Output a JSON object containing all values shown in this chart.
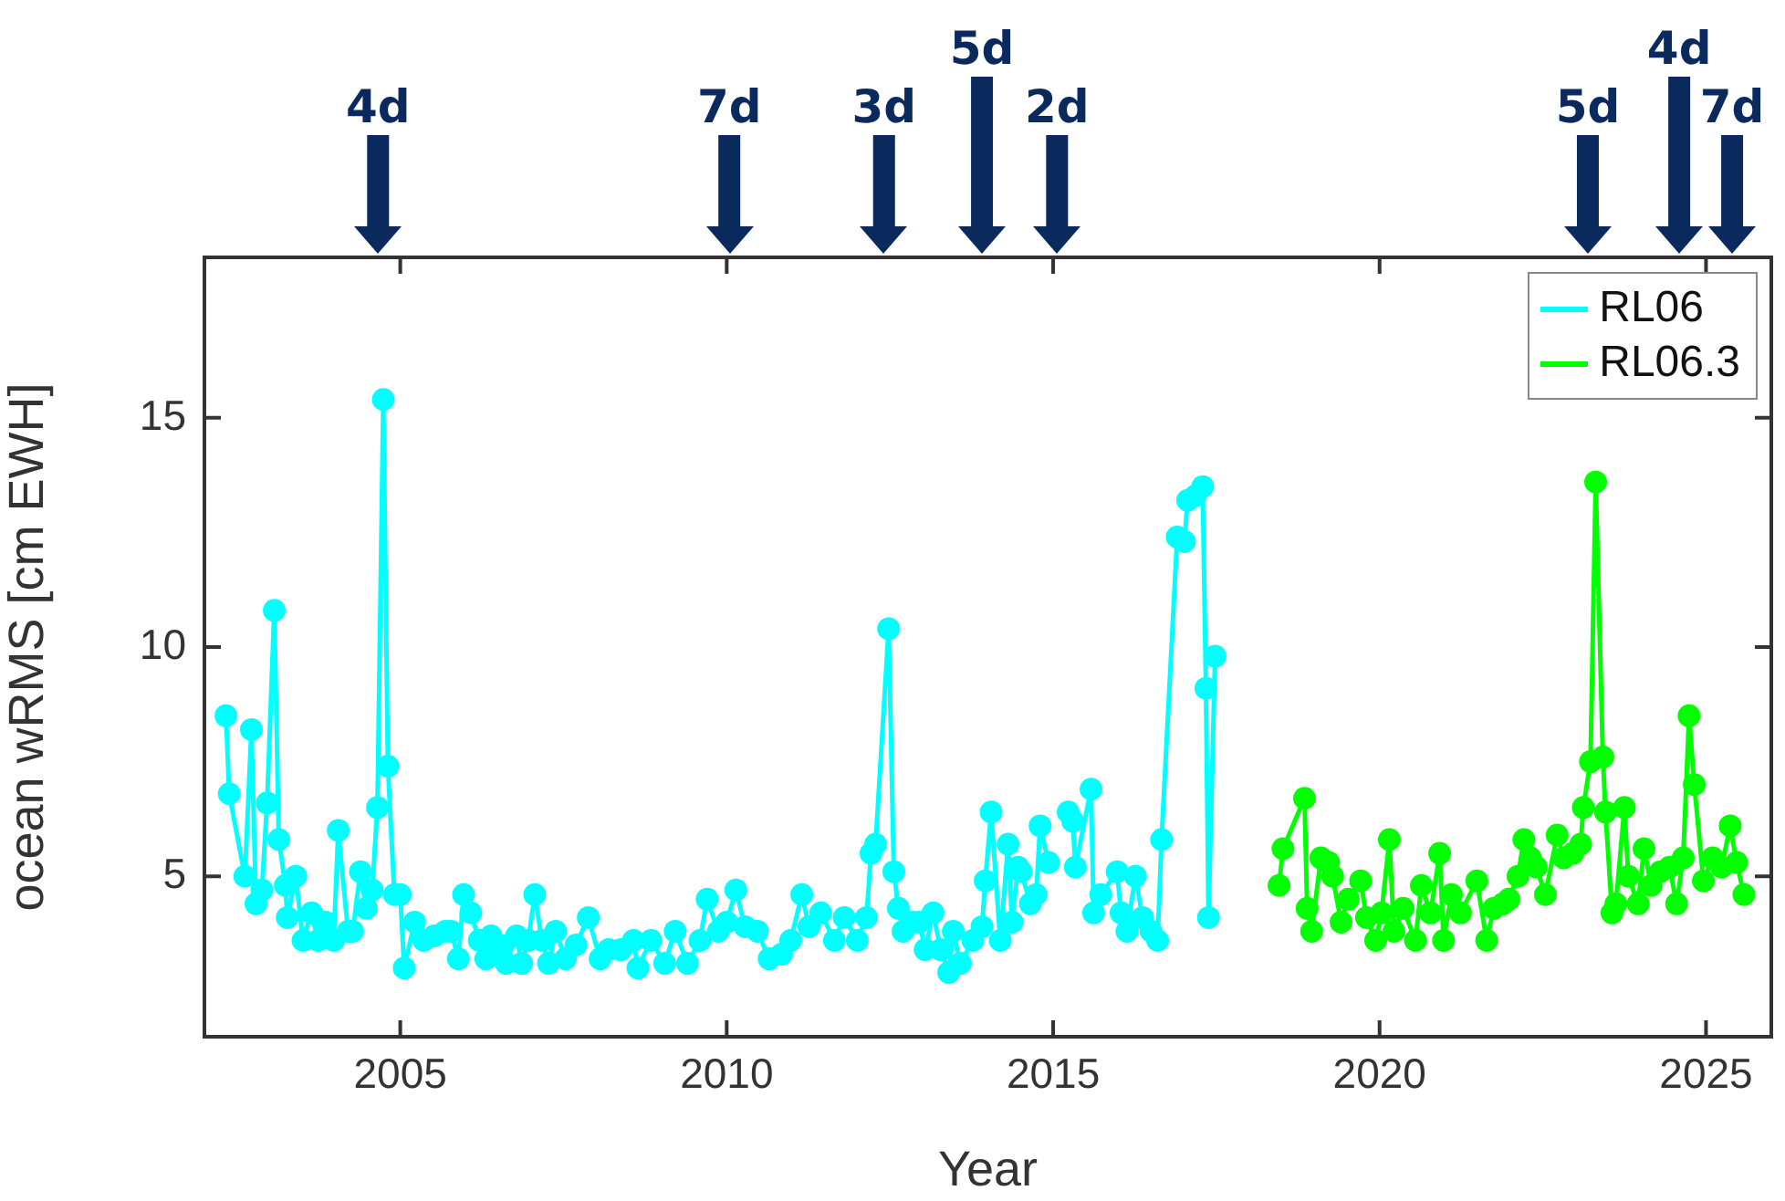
{
  "chart_data": {
    "type": "line",
    "xlabel": "Year",
    "ylabel": "ocean wRMS [cm EWH]",
    "xlim": [
      2002,
      2026
    ],
    "xticks": [
      2005,
      2010,
      2015,
      2020,
      2025
    ],
    "ylim": [
      1.5,
      18.5
    ],
    "yticks": [
      5,
      10,
      15
    ],
    "grid": false,
    "legend": "top right",
    "marker": "circle",
    "line_style": "solid",
    "ref_lines": [
      {
        "axis": "x",
        "value": 2004.66,
        "label": "4d"
      },
      {
        "axis": "x",
        "value": 2010.04,
        "label": "7d"
      },
      {
        "axis": "x",
        "value": 2012.41,
        "label": "3d"
      },
      {
        "axis": "x",
        "value": 2013.91,
        "label": "5d"
      },
      {
        "axis": "x",
        "value": 2015.06,
        "label": "2d"
      },
      {
        "axis": "x",
        "value": 2023.19,
        "label": "5d"
      },
      {
        "axis": "x",
        "value": 2024.59,
        "label": "4d"
      },
      {
        "axis": "x",
        "value": 2025.4,
        "label": "7d"
      }
    ],
    "series": [
      {
        "name": "RL06",
        "color": "#00ffff",
        "x": [
          2002.33,
          2002.38,
          2002.62,
          2002.72,
          2002.79,
          2002.88,
          2002.96,
          2003.07,
          2003.14,
          2003.24,
          2003.27,
          2003.4,
          2003.51,
          2003.64,
          2003.74,
          2003.85,
          2003.98,
          2004.05,
          2004.2,
          2004.27,
          2004.39,
          2004.48,
          2004.57,
          2004.65,
          2004.74,
          2004.81,
          2004.91,
          2005.0,
          2005.06,
          2005.22,
          2005.36,
          2005.52,
          2005.69,
          2005.78,
          2005.89,
          2005.97,
          2006.08,
          2006.21,
          2006.31,
          2006.39,
          2006.52,
          2006.62,
          2006.78,
          2006.86,
          2006.96,
          2007.06,
          2007.17,
          2007.27,
          2007.38,
          2007.53,
          2007.69,
          2007.88,
          2008.06,
          2008.19,
          2008.38,
          2008.57,
          2008.64,
          2008.84,
          2009.05,
          2009.21,
          2009.4,
          2009.59,
          2009.7,
          2009.87,
          2010.0,
          2010.14,
          2010.28,
          2010.47,
          2010.65,
          2010.84,
          2010.98,
          2011.15,
          2011.26,
          2011.44,
          2011.65,
          2011.8,
          2012.0,
          2012.14,
          2012.21,
          2012.28,
          2012.48,
          2012.56,
          2012.63,
          2012.7,
          2012.84,
          2012.95,
          2013.04,
          2013.16,
          2013.28,
          2013.4,
          2013.47,
          2013.58,
          2013.77,
          2013.91,
          2013.96,
          2014.05,
          2014.19,
          2014.31,
          2014.37,
          2014.46,
          2014.51,
          2014.65,
          2014.74,
          2014.8,
          2014.93,
          2015.02,
          2015.15,
          2015.23,
          2015.3,
          2015.34,
          2015.58,
          2015.62,
          2015.73,
          2015.98,
          2016.04,
          2016.13,
          2016.26,
          2016.37,
          2016.5,
          2016.6,
          2016.66,
          2016.9,
          2017.01,
          2017.06,
          2017.18,
          2017.29,
          2017.34,
          2017.38,
          2017.48
        ],
        "values": [
          8.5,
          6.8,
          5.0,
          8.2,
          4.4,
          4.7,
          6.6,
          10.8,
          5.8,
          4.8,
          4.1,
          5.0,
          3.6,
          4.2,
          3.6,
          4.0,
          3.6,
          6.0,
          3.8,
          3.8,
          5.1,
          4.3,
          4.7,
          6.5,
          15.4,
          7.4,
          4.6,
          4.6,
          3.0,
          4.0,
          3.6,
          3.7,
          3.8,
          3.8,
          3.2,
          4.6,
          4.2,
          3.6,
          3.2,
          3.7,
          3.5,
          3.1,
          3.7,
          3.1,
          3.6,
          4.6,
          3.6,
          3.1,
          3.8,
          3.2,
          3.5,
          4.1,
          3.2,
          3.4,
          3.4,
          3.6,
          3.0,
          3.6,
          3.1,
          3.8,
          3.1,
          3.6,
          4.5,
          3.8,
          4.0,
          4.7,
          3.9,
          3.8,
          3.2,
          3.3,
          3.6,
          4.6,
          3.9,
          4.2,
          3.6,
          4.1,
          3.6,
          4.1,
          5.5,
          5.7,
          10.4,
          5.1,
          4.3,
          3.8,
          4.0,
          4.0,
          3.4,
          4.2,
          3.4,
          2.9,
          3.8,
          3.1,
          3.6,
          3.9,
          4.9,
          6.4,
          3.6,
          5.7,
          4.0,
          5.2,
          5.1,
          4.4,
          4.6,
          6.1,
          5.3,
          null,
          null,
          6.4,
          6.2,
          5.2,
          6.9,
          4.2,
          4.6,
          5.1,
          4.2,
          3.8,
          5.0,
          4.1,
          3.8,
          3.6,
          5.8,
          12.4,
          12.3,
          13.2,
          13.3,
          13.5,
          9.1,
          4.1,
          9.8
        ]
      },
      {
        "name": "RL06.3",
        "color": "#00ff00",
        "x": [
          2018.46,
          2018.52,
          2018.85,
          2018.89,
          2018.96,
          2019.1,
          2019.22,
          2019.28,
          2019.41,
          2019.52,
          2019.71,
          2019.8,
          2019.94,
          2020.03,
          2020.15,
          2020.22,
          2020.36,
          2020.55,
          2020.64,
          2020.78,
          2020.92,
          2020.98,
          2021.1,
          2021.24,
          2021.49,
          2021.64,
          2021.75,
          2021.89,
          2021.98,
          2022.12,
          2022.21,
          2022.31,
          2022.4,
          2022.54,
          2022.72,
          2022.82,
          2022.96,
          2023.08,
          2023.12,
          2023.23,
          2023.31,
          2023.42,
          2023.46,
          2023.56,
          2023.62,
          2023.75,
          2023.81,
          2023.96,
          2024.05,
          2024.16,
          2024.3,
          2024.44,
          2024.55,
          2024.65,
          2024.74,
          2024.82,
          2024.96,
          2025.1,
          2025.24,
          2025.37,
          2025.47,
          2025.58
        ],
        "values": [
          4.8,
          5.6,
          6.7,
          4.3,
          3.8,
          5.4,
          5.3,
          5.0,
          4.0,
          4.5,
          4.9,
          4.1,
          3.6,
          4.2,
          5.8,
          3.8,
          4.3,
          3.6,
          4.8,
          4.2,
          5.5,
          3.6,
          4.6,
          4.2,
          4.9,
          3.6,
          4.3,
          4.4,
          4.5,
          5.0,
          5.8,
          5.4,
          5.2,
          4.6,
          5.9,
          5.4,
          5.5,
          5.7,
          6.5,
          7.5,
          13.6,
          7.6,
          6.4,
          4.2,
          4.4,
          6.5,
          5.0,
          4.4,
          5.6,
          4.8,
          5.1,
          5.2,
          4.4,
          5.4,
          8.5,
          7.0,
          4.9,
          5.4,
          5.2,
          6.1,
          5.3,
          4.6
        ]
      }
    ]
  }
}
